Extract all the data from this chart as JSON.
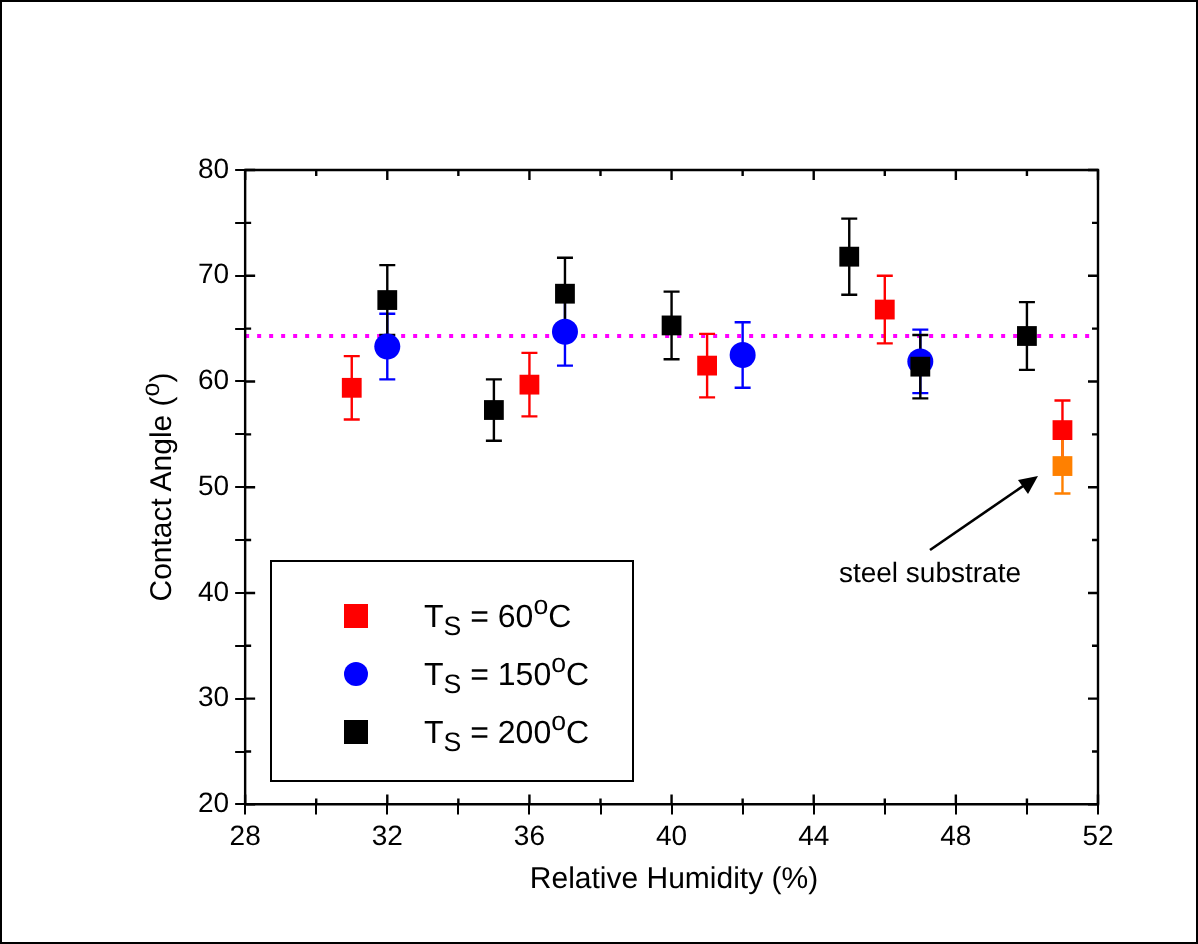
{
  "chart_data": {
    "type": "scatter",
    "xlabel": "Relative Humidity (%)",
    "ylabel": "Contact Angle ($^{o}$)",
    "xlim": [
      28,
      52
    ],
    "xticks": [
      28,
      {
        "value": 30,
        "label": null
      },
      32,
      {
        "value": 34,
        "label": null
      },
      36,
      {
        "value": 38,
        "label": null
      },
      40,
      {
        "value": 42,
        "label": null
      },
      44,
      {
        "value": 46,
        "label": null
      },
      48,
      {
        "value": 50,
        "label": null
      },
      52
    ],
    "ylim": [
      20,
      80
    ],
    "yticks": [
      20,
      {
        "value": 25,
        "label": null
      },
      30,
      {
        "value": 35,
        "label": null
      },
      40,
      {
        "value": 45,
        "label": null
      },
      50,
      {
        "value": 55,
        "label": null
      },
      60,
      {
        "value": 65,
        "label": null
      },
      70,
      {
        "value": 75,
        "label": null
      },
      80
    ],
    "grid": false,
    "legend": "bottom left",
    "series": [
      {
        "name": "T$_{S}$ = 60$^{o}$C",
        "color": "#ff0000",
        "marker": "square",
        "x": [
          31,
          36,
          41,
          46,
          51
        ],
        "values": [
          59.4,
          59.7,
          61.5,
          66.8,
          55.4
        ],
        "errors": [
          3,
          3,
          3,
          3.2,
          2.8
        ]
      },
      {
        "name": "T$_{S}$ = 150$^{o}$C",
        "color": "#0000ff",
        "marker": "circle",
        "x": [
          32,
          37,
          42,
          47
        ],
        "values": [
          63.3,
          64.7,
          62.5,
          61.9
        ],
        "errors": [
          3.1,
          3.2,
          3.1,
          3
        ]
      },
      {
        "name": "T$_{S}$ = 200$^{o}$C",
        "color": "#000000",
        "marker": "square",
        "x": [
          32,
          35,
          37,
          40,
          45,
          47,
          50
        ],
        "values": [
          67.7,
          57.3,
          68.3,
          65.3,
          71.8,
          61.4,
          64.3
        ],
        "errors": [
          3.3,
          2.9,
          3.4,
          3.2,
          3.6,
          3,
          3.2
        ]
      },
      {
        "color": "#ff8000",
        "marker": "square",
        "x": [
          51
        ],
        "values": [
          52.0
        ],
        "errors": [
          2.6
        ]
      }
    ],
    "ref_lines": [
      {
        "axis": "y",
        "value": 64.3,
        "color": "#ff00ff",
        "line_style": "dotted"
      }
    ],
    "annotations": [
      "steel substrate"
    ]
  }
}
